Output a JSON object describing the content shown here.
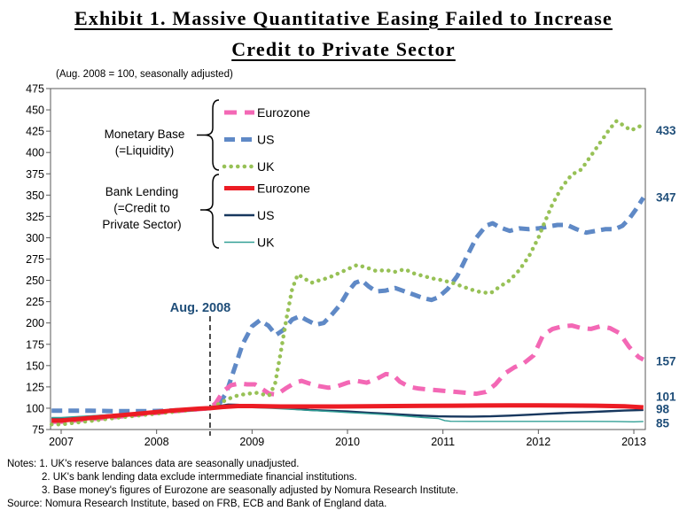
{
  "title": {
    "line1": "Exhibit 1. Massive Quantitative Easing Failed to Increase",
    "line2": "Credit to Private Sector"
  },
  "chart_data": {
    "type": "line",
    "subtitle": "(Aug. 2008 = 100, seasonally adjusted)",
    "annotation": {
      "label": "Aug. 2008",
      "x_year": 2008.56
    },
    "x_axis": {
      "ticks": [
        "2007",
        "2008",
        "2009",
        "2010",
        "2011",
        "2012",
        "2013"
      ]
    },
    "y_axis": {
      "min": 75,
      "max": 475,
      "step": 25
    },
    "legend_groups": [
      {
        "lines": [
          "Monetary Base",
          "(=Liquidity)"
        ]
      },
      {
        "lines": [
          "Bank Lending",
          "(=Credit to",
          "Private Sector)"
        ]
      }
    ],
    "series": [
      {
        "id": "eurozone-monetary-base",
        "label": "Eurozone",
        "group": "Monetary Base (=Liquidity)",
        "color": "#F368B5",
        "line_style": "dash",
        "dash": "14 9",
        "width": 5,
        "end_label": "157",
        "points": [
          [
            2006.9,
            84
          ],
          [
            2007.0,
            84
          ],
          [
            2007.3,
            87
          ],
          [
            2007.6,
            90
          ],
          [
            2007.9,
            93.5
          ],
          [
            2008.2,
            96.5
          ],
          [
            2008.4,
            98.5
          ],
          [
            2008.56,
            100
          ],
          [
            2008.62,
            106
          ],
          [
            2008.7,
            120
          ],
          [
            2008.78,
            127
          ],
          [
            2008.87,
            129
          ],
          [
            2008.95,
            128
          ],
          [
            2009.03,
            128
          ],
          [
            2009.1,
            123
          ],
          [
            2009.18,
            117
          ],
          [
            2009.26,
            116
          ],
          [
            2009.35,
            123
          ],
          [
            2009.45,
            130
          ],
          [
            2009.52,
            132
          ],
          [
            2009.6,
            129
          ],
          [
            2009.7,
            126
          ],
          [
            2009.8,
            124
          ],
          [
            2009.9,
            126
          ],
          [
            2010.0,
            130
          ],
          [
            2010.1,
            132
          ],
          [
            2010.2,
            130
          ],
          [
            2010.3,
            134
          ],
          [
            2010.4,
            140
          ],
          [
            2010.48,
            139
          ],
          [
            2010.55,
            131
          ],
          [
            2010.65,
            125
          ],
          [
            2010.75,
            123
          ],
          [
            2010.85,
            122
          ],
          [
            2010.95,
            121
          ],
          [
            2011.05,
            120
          ],
          [
            2011.15,
            119
          ],
          [
            2011.25,
            118
          ],
          [
            2011.35,
            117
          ],
          [
            2011.45,
            119
          ],
          [
            2011.55,
            128
          ],
          [
            2011.65,
            141
          ],
          [
            2011.75,
            148
          ],
          [
            2011.85,
            153
          ],
          [
            2011.95,
            162
          ],
          [
            2012.05,
            186
          ],
          [
            2012.15,
            193
          ],
          [
            2012.25,
            196
          ],
          [
            2012.35,
            197
          ],
          [
            2012.45,
            194
          ],
          [
            2012.55,
            193
          ],
          [
            2012.65,
            196
          ],
          [
            2012.75,
            194
          ],
          [
            2012.85,
            188
          ],
          [
            2012.95,
            172
          ],
          [
            2013.05,
            160
          ],
          [
            2013.1,
            157
          ]
        ]
      },
      {
        "id": "us-monetary-base",
        "label": "US",
        "group": "Monetary Base (=Liquidity)",
        "color": "#5F89C6",
        "line_style": "dash",
        "dash": "12 7",
        "width": 5,
        "end_label": "347",
        "points": [
          [
            2006.9,
            97
          ],
          [
            2007.0,
            97
          ],
          [
            2007.3,
            97
          ],
          [
            2007.6,
            96.5
          ],
          [
            2007.9,
            96.5
          ],
          [
            2008.1,
            97
          ],
          [
            2008.3,
            98
          ],
          [
            2008.45,
            99
          ],
          [
            2008.56,
            100
          ],
          [
            2008.65,
            104
          ],
          [
            2008.73,
            118
          ],
          [
            2008.82,
            148
          ],
          [
            2008.9,
            175
          ],
          [
            2009.0,
            196
          ],
          [
            2009.08,
            203
          ],
          [
            2009.17,
            197
          ],
          [
            2009.25,
            186
          ],
          [
            2009.33,
            192
          ],
          [
            2009.42,
            204
          ],
          [
            2009.5,
            208
          ],
          [
            2009.58,
            203
          ],
          [
            2009.67,
            198
          ],
          [
            2009.75,
            200
          ],
          [
            2009.83,
            209
          ],
          [
            2009.92,
            221
          ],
          [
            2010.0,
            236
          ],
          [
            2010.08,
            247
          ],
          [
            2010.15,
            250
          ],
          [
            2010.22,
            243
          ],
          [
            2010.3,
            237
          ],
          [
            2010.4,
            238
          ],
          [
            2010.5,
            241
          ],
          [
            2010.6,
            237
          ],
          [
            2010.7,
            233
          ],
          [
            2010.8,
            229
          ],
          [
            2010.88,
            227
          ],
          [
            2010.95,
            230
          ],
          [
            2011.05,
            240
          ],
          [
            2011.15,
            255
          ],
          [
            2011.25,
            278
          ],
          [
            2011.35,
            300
          ],
          [
            2011.45,
            314
          ],
          [
            2011.52,
            317
          ],
          [
            2011.6,
            312
          ],
          [
            2011.7,
            308
          ],
          [
            2011.8,
            311
          ],
          [
            2011.9,
            310
          ],
          [
            2012.0,
            311
          ],
          [
            2012.1,
            313
          ],
          [
            2012.2,
            315
          ],
          [
            2012.3,
            315
          ],
          [
            2012.4,
            310
          ],
          [
            2012.5,
            306
          ],
          [
            2012.6,
            308
          ],
          [
            2012.7,
            310
          ],
          [
            2012.8,
            310
          ],
          [
            2012.88,
            314
          ],
          [
            2012.95,
            322
          ],
          [
            2013.02,
            333
          ],
          [
            2013.1,
            347
          ]
        ]
      },
      {
        "id": "uk-monetary-base",
        "label": "UK",
        "group": "Monetary Base (=Liquidity)",
        "color": "#97C156",
        "line_style": "dot",
        "dash": "0.1 7.5",
        "width": 4.5,
        "linecap": "round",
        "end_label": "433",
        "points": [
          [
            2006.9,
            81
          ],
          [
            2007.0,
            81
          ],
          [
            2007.3,
            85
          ],
          [
            2007.6,
            89
          ],
          [
            2007.9,
            92.5
          ],
          [
            2008.2,
            96
          ],
          [
            2008.4,
            98.5
          ],
          [
            2008.56,
            100
          ],
          [
            2008.65,
            105
          ],
          [
            2008.75,
            111
          ],
          [
            2008.85,
            115
          ],
          [
            2008.95,
            117
          ],
          [
            2009.05,
            118
          ],
          [
            2009.12,
            116
          ],
          [
            2009.18,
            115
          ],
          [
            2009.24,
            128
          ],
          [
            2009.3,
            165
          ],
          [
            2009.36,
            205
          ],
          [
            2009.42,
            240
          ],
          [
            2009.48,
            257
          ],
          [
            2009.55,
            252
          ],
          [
            2009.62,
            247
          ],
          [
            2009.7,
            250
          ],
          [
            2009.8,
            253
          ],
          [
            2009.9,
            258
          ],
          [
            2010.0,
            263
          ],
          [
            2010.1,
            268
          ],
          [
            2010.2,
            265
          ],
          [
            2010.3,
            261
          ],
          [
            2010.4,
            262
          ],
          [
            2010.5,
            260
          ],
          [
            2010.6,
            263
          ],
          [
            2010.7,
            258
          ],
          [
            2010.8,
            255
          ],
          [
            2010.9,
            252
          ],
          [
            2011.0,
            250
          ],
          [
            2011.1,
            247
          ],
          [
            2011.2,
            243
          ],
          [
            2011.3,
            239
          ],
          [
            2011.4,
            236
          ],
          [
            2011.5,
            235
          ],
          [
            2011.6,
            243
          ],
          [
            2011.7,
            250
          ],
          [
            2011.8,
            262
          ],
          [
            2011.9,
            278
          ],
          [
            2012.0,
            300
          ],
          [
            2012.05,
            314
          ],
          [
            2012.15,
            340
          ],
          [
            2012.25,
            360
          ],
          [
            2012.35,
            374
          ],
          [
            2012.45,
            380
          ],
          [
            2012.55,
            396
          ],
          [
            2012.65,
            412
          ],
          [
            2012.75,
            428
          ],
          [
            2012.82,
            437
          ],
          [
            2012.9,
            431
          ],
          [
            2012.97,
            426
          ],
          [
            2013.05,
            430
          ],
          [
            2013.1,
            433
          ]
        ]
      },
      {
        "id": "eurozone-bank-lending",
        "label": "Eurozone",
        "group": "Bank Lending (=Credit to Private Sector)",
        "color": "#EC1C24",
        "line_style": "solid",
        "width": 5,
        "end_label": "101",
        "points": [
          [
            2006.9,
            85.5
          ],
          [
            2007.0,
            85.5
          ],
          [
            2007.3,
            88.5
          ],
          [
            2007.6,
            91.5
          ],
          [
            2007.9,
            94.5
          ],
          [
            2008.2,
            97.5
          ],
          [
            2008.45,
            99.5
          ],
          [
            2008.56,
            100
          ],
          [
            2008.7,
            101.5
          ],
          [
            2008.85,
            102.5
          ],
          [
            2009.0,
            102.5
          ],
          [
            2009.3,
            102
          ],
          [
            2009.6,
            102
          ],
          [
            2009.9,
            102
          ],
          [
            2010.2,
            102.2
          ],
          [
            2010.5,
            102.5
          ],
          [
            2010.8,
            102.8
          ],
          [
            2011.1,
            103
          ],
          [
            2011.4,
            103.2
          ],
          [
            2011.7,
            103.3
          ],
          [
            2012.0,
            103.3
          ],
          [
            2012.3,
            103.2
          ],
          [
            2012.6,
            103
          ],
          [
            2012.9,
            102.3
          ],
          [
            2013.1,
            101
          ]
        ]
      },
      {
        "id": "us-bank-lending",
        "label": "US",
        "group": "Bank Lending (=Credit to Private Sector)",
        "color": "#17375E",
        "line_style": "solid",
        "width": 2.4,
        "end_label": "98",
        "points": [
          [
            2006.9,
            88
          ],
          [
            2007.0,
            88
          ],
          [
            2007.3,
            90.3
          ],
          [
            2007.6,
            92.5
          ],
          [
            2007.9,
            94.8
          ],
          [
            2008.2,
            97
          ],
          [
            2008.45,
            99
          ],
          [
            2008.56,
            100
          ],
          [
            2008.65,
            102.5
          ],
          [
            2008.75,
            104.3
          ],
          [
            2008.85,
            104
          ],
          [
            2009.0,
            103
          ],
          [
            2009.2,
            101.3
          ],
          [
            2009.4,
            99.5
          ],
          [
            2009.6,
            98
          ],
          [
            2009.8,
            97
          ],
          [
            2010.0,
            96.2
          ],
          [
            2010.2,
            94.8
          ],
          [
            2010.4,
            93.6
          ],
          [
            2010.6,
            92.3
          ],
          [
            2010.8,
            91.2
          ],
          [
            2010.95,
            90.5
          ],
          [
            2011.1,
            90.3
          ],
          [
            2011.3,
            90.2
          ],
          [
            2011.5,
            90.5
          ],
          [
            2011.7,
            91.3
          ],
          [
            2011.9,
            92.3
          ],
          [
            2012.1,
            93.5
          ],
          [
            2012.3,
            94.5
          ],
          [
            2012.5,
            95.4
          ],
          [
            2012.7,
            96.3
          ],
          [
            2012.9,
            97.2
          ],
          [
            2013.1,
            98
          ]
        ]
      },
      {
        "id": "uk-bank-lending",
        "label": "UK",
        "group": "Bank Lending (=Credit to Private Sector)",
        "color": "#32A096",
        "line_style": "solid",
        "width": 1.4,
        "end_label": "85",
        "points": [
          [
            2006.9,
            89
          ],
          [
            2007.0,
            89
          ],
          [
            2007.3,
            91
          ],
          [
            2007.6,
            93
          ],
          [
            2007.9,
            95.2
          ],
          [
            2008.2,
            97.5
          ],
          [
            2008.45,
            99.3
          ],
          [
            2008.56,
            100
          ],
          [
            2008.7,
            100.8
          ],
          [
            2008.85,
            101
          ],
          [
            2009.0,
            100.7
          ],
          [
            2009.2,
            99.8
          ],
          [
            2009.4,
            98.7
          ],
          [
            2009.6,
            97.5
          ],
          [
            2009.8,
            96.3
          ],
          [
            2010.0,
            95
          ],
          [
            2010.2,
            93.8
          ],
          [
            2010.4,
            92.5
          ],
          [
            2010.6,
            90.8
          ],
          [
            2010.8,
            89
          ],
          [
            2010.95,
            88
          ],
          [
            2011.02,
            85.5
          ],
          [
            2011.08,
            84.7
          ],
          [
            2011.3,
            84.6
          ],
          [
            2011.6,
            84.6
          ],
          [
            2011.9,
            84.6
          ],
          [
            2012.2,
            84.6
          ],
          [
            2012.5,
            84.6
          ],
          [
            2012.8,
            84.5
          ],
          [
            2013.0,
            84
          ],
          [
            2013.1,
            84.5
          ]
        ]
      }
    ]
  },
  "notes": {
    "line1": "Notes: 1. UK's reserve balances data are seasonally unadjusted.",
    "line2": "2. UK's bank lending data exclude intermmediate financial institutions.",
    "line3": "3. Base money's figures of Eurozone are seasonally adjusted by Nomura Research Institute."
  },
  "source": "Source: Nomura Research Institute, based on FRB, ECB and Bank of England data."
}
